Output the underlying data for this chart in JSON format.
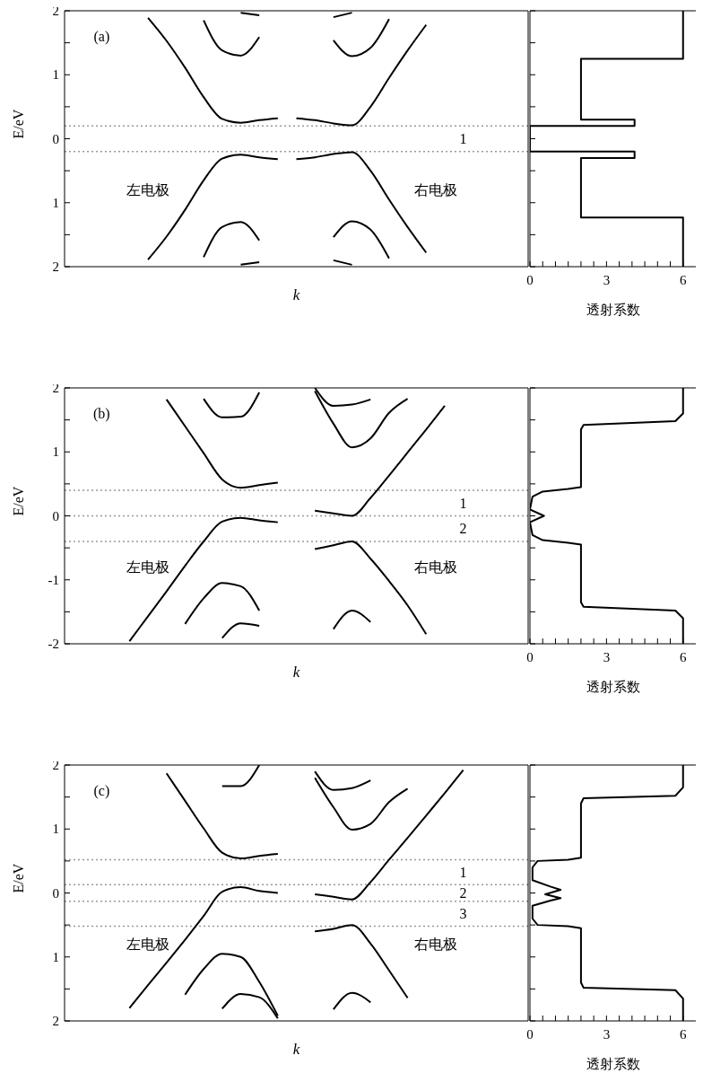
{
  "chart_data": [
    {
      "type": "line",
      "xlabel": "k",
      "ylabel": "E/eV",
      "annotations": [
        "(a)",
        "左电极",
        "右电极",
        "1"
      ],
      "categories": [
        null,
        null,
        null,
        null,
        null,
        null,
        null,
        null,
        null,
        null,
        null,
        null,
        null,
        null,
        null,
        null,
        null,
        null,
        null,
        null,
        null,
        null,
        null,
        null,
        null
      ],
      "series": [
        {
          "color": "#000000",
          "values": [
            null,
            null,
            null,
            null,
            1.89,
            1.53,
            1.11,
            0.65,
            0.31,
            0.25,
            0.29,
            0.32,
            null,
            null,
            null,
            null,
            null,
            null,
            null,
            null,
            null,
            null,
            null,
            null,
            null
          ]
        },
        {
          "color": "#000000",
          "values": [
            null,
            null,
            null,
            null,
            null,
            null,
            null,
            null,
            null,
            null,
            null,
            null,
            0.32,
            0.29,
            0.24,
            0.21,
            0.5,
            0.95,
            1.38,
            1.78,
            null,
            null,
            null,
            null,
            null
          ]
        },
        {
          "color": "#000000",
          "values": [
            null,
            null,
            null,
            null,
            -1.89,
            -1.53,
            -1.11,
            -0.65,
            -0.31,
            -0.25,
            -0.29,
            -0.32,
            null,
            null,
            null,
            null,
            null,
            null,
            null,
            null,
            null,
            null,
            null,
            null,
            null
          ]
        },
        {
          "color": "#000000",
          "values": [
            null,
            null,
            null,
            null,
            null,
            null,
            null,
            null,
            null,
            null,
            null,
            null,
            -0.32,
            -0.29,
            -0.24,
            -0.21,
            -0.5,
            -0.95,
            -1.38,
            -1.78,
            null,
            null,
            null,
            null,
            null
          ]
        },
        {
          "color": "#000000",
          "values": [
            null,
            null,
            null,
            null,
            null,
            null,
            null,
            1.85,
            1.38,
            1.3,
            1.59,
            null,
            null,
            null,
            null,
            null,
            null,
            null,
            null,
            null,
            null,
            null,
            null,
            null,
            null
          ]
        },
        {
          "color": "#000000",
          "values": [
            null,
            null,
            null,
            null,
            null,
            null,
            null,
            null,
            null,
            null,
            null,
            null,
            null,
            null,
            1.54,
            1.29,
            1.42,
            1.87,
            null,
            null,
            null,
            null,
            null,
            null,
            null
          ]
        },
        {
          "color": "#000000",
          "values": [
            null,
            null,
            null,
            null,
            null,
            null,
            null,
            -1.85,
            -1.38,
            -1.3,
            -1.59,
            null,
            null,
            null,
            null,
            null,
            null,
            null,
            null,
            null,
            null,
            null,
            null,
            null,
            null
          ]
        },
        {
          "color": "#000000",
          "values": [
            null,
            null,
            null,
            null,
            null,
            null,
            null,
            null,
            null,
            null,
            null,
            null,
            null,
            null,
            -1.54,
            -1.29,
            -1.42,
            -1.87,
            null,
            null,
            null,
            null,
            null,
            null,
            null
          ]
        },
        {
          "color": "#000000",
          "values": [
            null,
            null,
            null,
            null,
            null,
            null,
            null,
            null,
            null,
            1.97,
            1.93,
            null,
            null,
            null,
            null,
            null,
            null,
            null,
            null,
            null,
            null,
            null,
            null,
            null,
            null
          ]
        },
        {
          "color": "#000000",
          "values": [
            null,
            null,
            null,
            null,
            null,
            null,
            null,
            null,
            null,
            null,
            null,
            null,
            null,
            null,
            1.9,
            1.97,
            null,
            null,
            null,
            null,
            null,
            null,
            null,
            null,
            null
          ]
        },
        {
          "color": "#000000",
          "values": [
            null,
            null,
            null,
            null,
            null,
            null,
            null,
            null,
            null,
            -1.97,
            -1.93,
            null,
            null,
            null,
            null,
            null,
            null,
            null,
            null,
            null,
            null,
            null,
            null,
            null,
            null
          ]
        },
        {
          "color": "#000000",
          "values": [
            null,
            null,
            null,
            null,
            null,
            null,
            null,
            null,
            null,
            null,
            null,
            null,
            null,
            null,
            -1.9,
            -1.97,
            null,
            null,
            null,
            null,
            null,
            null,
            null,
            null,
            null
          ]
        }
      ],
      "ylim": [
        -2,
        2
      ],
      "yticks": [
        2,
        {
          "value": 1.5,
          "label": null
        },
        1,
        {
          "value": 0.5,
          "label": null
        },
        0,
        {
          "value": -0.5,
          "label": null
        },
        {
          "value": -1,
          "label": "1"
        },
        {
          "value": -1.5,
          "label": null
        },
        {
          "value": -2,
          "label": "2"
        }
      ],
      "tick_labels": "y",
      "ref_lines": [
        {
          "axis": "y",
          "value": 0.2,
          "color": "#999999",
          "line_style": "dotted"
        },
        {
          "axis": "y",
          "value": -0.2,
          "color": "#999999",
          "line_style": "dotted"
        }
      ]
    },
    {
      "type": "line",
      "xlabel": "透射系数",
      "color": "#000000",
      "x": [
        6,
        6,
        2,
        2,
        4.1,
        4.1,
        0,
        0,
        4.1,
        4.1,
        2,
        2,
        6,
        6
      ],
      "values": [
        2,
        1.25,
        1.25,
        0.3,
        0.3,
        0.2,
        0.2,
        -0.2,
        -0.2,
        -0.3,
        -0.3,
        -1.23,
        -1.23,
        -2
      ],
      "xlim": [
        0,
        6.5
      ],
      "xticks": [
        0,
        {
          "value": 0.5,
          "label": null
        },
        {
          "value": 1,
          "label": null
        },
        {
          "value": 1.5,
          "label": null
        },
        {
          "value": 2,
          "label": null
        },
        {
          "value": 2.5,
          "label": null
        },
        3,
        {
          "value": 3.5,
          "label": null
        },
        {
          "value": 4,
          "label": null
        },
        {
          "value": 4.5,
          "label": null
        },
        {
          "value": 5,
          "label": null
        },
        {
          "value": 5.5,
          "label": null
        },
        6
      ],
      "ylim": [
        -2,
        2
      ],
      "yticks": [
        {
          "value": 2,
          "label": null
        },
        {
          "value": 1.5,
          "label": null
        },
        {
          "value": 1,
          "label": null
        },
        {
          "value": 0.5,
          "label": null
        },
        {
          "value": 0,
          "label": null
        },
        {
          "value": -0.5,
          "label": null
        },
        {
          "value": -1,
          "label": null
        },
        {
          "value": -1.5,
          "label": null
        },
        {
          "value": -2,
          "label": null
        }
      ],
      "tick_labels": "x"
    },
    {
      "type": "line",
      "xlabel": "k",
      "ylabel": "E/eV",
      "annotations": [
        "(b)",
        "左电极",
        "右电极",
        "1",
        "2"
      ],
      "categories": [
        null,
        null,
        null,
        null,
        null,
        null,
        null,
        null,
        null,
        null,
        null,
        null,
        null,
        null,
        null,
        null,
        null,
        null,
        null,
        null,
        null,
        null,
        null,
        null,
        null
      ],
      "series": [
        {
          "color": "#000000",
          "values": [
            null,
            null,
            null,
            null,
            null,
            1.82,
            1.4,
            0.98,
            0.57,
            0.44,
            0.48,
            0.52,
            null,
            null,
            null,
            null,
            null,
            null,
            null,
            null,
            null,
            null,
            null,
            null,
            null
          ]
        },
        {
          "color": "#000000",
          "values": [
            null,
            null,
            null,
            -1.96,
            -1.57,
            -1.18,
            -0.78,
            -0.4,
            -0.09,
            -0.03,
            -0.07,
            -0.1,
            null,
            null,
            null,
            null,
            null,
            null,
            null,
            null,
            null,
            null,
            null,
            null,
            null
          ]
        },
        {
          "color": "#000000",
          "values": [
            null,
            null,
            null,
            null,
            null,
            null,
            null,
            1.83,
            1.54,
            1.55,
            1.93,
            null,
            null,
            null,
            null,
            null,
            null,
            null,
            null,
            null,
            null,
            null,
            null,
            null,
            null
          ]
        },
        {
          "color": "#000000",
          "values": [
            null,
            null,
            null,
            null,
            null,
            null,
            -1.69,
            -1.29,
            -1.05,
            -1.1,
            -1.48,
            null,
            null,
            null,
            null,
            null,
            null,
            null,
            null,
            null,
            null,
            null,
            null,
            null,
            null
          ]
        },
        {
          "color": "#000000",
          "values": [
            null,
            null,
            null,
            null,
            null,
            null,
            null,
            null,
            -1.91,
            -1.68,
            -1.72,
            null,
            null,
            null,
            null,
            null,
            null,
            null,
            null,
            null,
            null,
            null,
            null,
            null,
            null
          ]
        },
        {
          "color": "#000000",
          "values": [
            null,
            null,
            null,
            null,
            null,
            null,
            null,
            null,
            null,
            null,
            null,
            null,
            null,
            0.08,
            0.04,
            0.0,
            0.28,
            0.63,
            0.99,
            1.35,
            1.72,
            null,
            null,
            null,
            null
          ]
        },
        {
          "color": "#000000",
          "values": [
            null,
            null,
            null,
            null,
            null,
            null,
            null,
            null,
            null,
            null,
            null,
            null,
            null,
            -0.52,
            -0.46,
            -0.4,
            -0.67,
            -1.02,
            -1.4,
            -1.85,
            null,
            null,
            null,
            null,
            null
          ]
        },
        {
          "color": "#000000",
          "values": [
            null,
            null,
            null,
            null,
            null,
            null,
            null,
            null,
            null,
            null,
            null,
            null,
            null,
            1.95,
            1.44,
            1.07,
            1.21,
            1.61,
            1.83,
            null,
            null,
            null,
            null,
            null,
            null
          ]
        },
        {
          "color": "#000000",
          "values": [
            null,
            null,
            null,
            null,
            null,
            null,
            null,
            null,
            null,
            null,
            null,
            null,
            null,
            2.0,
            1.72,
            1.74,
            1.82,
            null,
            null,
            null,
            null,
            null,
            null,
            null,
            null
          ]
        },
        {
          "color": "#000000",
          "values": [
            null,
            null,
            null,
            null,
            null,
            null,
            null,
            null,
            null,
            null,
            null,
            null,
            null,
            null,
            -1.77,
            -1.48,
            -1.66,
            null,
            null,
            null,
            null,
            null,
            null,
            null,
            null
          ]
        }
      ],
      "ylim": [
        -2,
        2
      ],
      "yticks": [
        2,
        {
          "value": 1.5,
          "label": null
        },
        1,
        {
          "value": 0.5,
          "label": null
        },
        0,
        {
          "value": -0.5,
          "label": null
        },
        -1,
        {
          "value": -1.5,
          "label": null
        },
        -2
      ],
      "tick_labels": "y",
      "ref_lines": [
        {
          "axis": "y",
          "value": 0.4,
          "color": "#999999",
          "line_style": "dotted"
        },
        {
          "axis": "y",
          "value": 0,
          "color": "#999999",
          "line_style": "dotted"
        },
        {
          "axis": "y",
          "value": -0.4,
          "color": "#999999",
          "line_style": "dotted"
        }
      ]
    },
    {
      "type": "line",
      "xlabel": "透射系数",
      "color": "#000000",
      "x": [
        6,
        6,
        5.7,
        2.1,
        2,
        2,
        1.5,
        0.5,
        0.1,
        0,
        0.55,
        0,
        0.1,
        0.5,
        1.5,
        2,
        2,
        2.1,
        5.7,
        6,
        6
      ],
      "values": [
        2,
        1.6,
        1.48,
        1.42,
        1.35,
        0.45,
        0.42,
        0.38,
        0.3,
        0.1,
        0,
        -0.1,
        -0.3,
        -0.38,
        -0.42,
        -0.45,
        -1.35,
        -1.42,
        -1.48,
        -1.6,
        -2
      ],
      "xlim": [
        0,
        6.5
      ],
      "xticks": [
        0,
        {
          "value": 0.5,
          "label": null
        },
        {
          "value": 1,
          "label": null
        },
        {
          "value": 1.5,
          "label": null
        },
        {
          "value": 2,
          "label": null
        },
        {
          "value": 2.5,
          "label": null
        },
        3,
        {
          "value": 3.5,
          "label": null
        },
        {
          "value": 4,
          "label": null
        },
        {
          "value": 4.5,
          "label": null
        },
        {
          "value": 5,
          "label": null
        },
        {
          "value": 5.5,
          "label": null
        },
        6
      ],
      "ylim": [
        -2,
        2
      ],
      "yticks": [
        {
          "value": 2,
          "label": null
        },
        {
          "value": 1.5,
          "label": null
        },
        {
          "value": 1,
          "label": null
        },
        {
          "value": 0.5,
          "label": null
        },
        {
          "value": 0,
          "label": null
        },
        {
          "value": -0.5,
          "label": null
        },
        {
          "value": -1,
          "label": null
        },
        {
          "value": -1.5,
          "label": null
        },
        {
          "value": -2,
          "label": null
        }
      ],
      "tick_labels": "x"
    },
    {
      "type": "line",
      "xlabel": "k",
      "ylabel": "E/eV",
      "annotations": [
        "(c)",
        "左电极",
        "右电极",
        "1",
        "2",
        "3"
      ],
      "categories": [
        null,
        null,
        null,
        null,
        null,
        null,
        null,
        null,
        null,
        null,
        null,
        null,
        null,
        null,
        null,
        null,
        null,
        null,
        null,
        null,
        null,
        null,
        null,
        null,
        null
      ],
      "series": [
        {
          "color": "#000000",
          "values": [
            null,
            null,
            null,
            null,
            null,
            1.87,
            1.44,
            1.01,
            0.63,
            0.54,
            0.58,
            0.61,
            null,
            null,
            null,
            null,
            null,
            null,
            null,
            null,
            null,
            null,
            null,
            null,
            null
          ]
        },
        {
          "color": "#000000",
          "values": [
            null,
            null,
            null,
            -1.8,
            -1.44,
            -1.09,
            -0.73,
            -0.36,
            0.02,
            0.09,
            0.03,
            0.0,
            null,
            null,
            null,
            null,
            null,
            null,
            null,
            null,
            null,
            null,
            null,
            null,
            null
          ]
        },
        {
          "color": "#000000",
          "values": [
            null,
            null,
            null,
            null,
            null,
            null,
            null,
            null,
            1.67,
            1.67,
            2.0,
            null,
            null,
            null,
            null,
            null,
            null,
            null,
            null,
            null,
            null,
            null,
            null,
            null,
            null
          ]
        },
        {
          "color": "#000000",
          "values": [
            null,
            null,
            null,
            null,
            null,
            null,
            -1.59,
            -1.19,
            -0.95,
            -1.0,
            -1.39,
            -1.92,
            null,
            null,
            null,
            null,
            null,
            null,
            null,
            null,
            null,
            null,
            null,
            null,
            null
          ]
        },
        {
          "color": "#000000",
          "values": [
            null,
            null,
            null,
            null,
            null,
            null,
            null,
            null,
            -1.81,
            -1.58,
            -1.63,
            -1.96,
            null,
            null,
            null,
            null,
            null,
            null,
            null,
            null,
            null,
            null,
            null,
            null,
            null
          ]
        },
        {
          "color": "#000000",
          "values": [
            null,
            null,
            null,
            null,
            null,
            null,
            null,
            null,
            null,
            null,
            null,
            null,
            null,
            -0.02,
            -0.06,
            -0.1,
            0.17,
            0.52,
            0.86,
            1.21,
            1.56,
            1.92,
            null,
            null,
            null
          ]
        },
        {
          "color": "#000000",
          "values": [
            null,
            null,
            null,
            null,
            null,
            null,
            null,
            null,
            null,
            null,
            null,
            null,
            null,
            -0.6,
            -0.56,
            -0.5,
            -0.79,
            -1.21,
            -1.64,
            null,
            null,
            null,
            null,
            null,
            null
          ]
        },
        {
          "color": "#000000",
          "values": [
            null,
            null,
            null,
            null,
            null,
            null,
            null,
            null,
            null,
            null,
            null,
            null,
            null,
            1.8,
            1.34,
            0.99,
            1.08,
            1.42,
            1.63,
            null,
            null,
            null,
            null,
            null,
            null
          ]
        },
        {
          "color": "#000000",
          "values": [
            null,
            null,
            null,
            null,
            null,
            null,
            null,
            null,
            null,
            null,
            null,
            null,
            null,
            1.9,
            1.61,
            1.64,
            1.76,
            null,
            null,
            null,
            null,
            null,
            null,
            null,
            null
          ]
        },
        {
          "color": "#000000",
          "values": [
            null,
            null,
            null,
            null,
            null,
            null,
            null,
            null,
            null,
            null,
            null,
            null,
            null,
            null,
            -1.82,
            -1.56,
            -1.71,
            null,
            null,
            null,
            null,
            null,
            null,
            null,
            null
          ]
        }
      ],
      "ylim": [
        -2,
        2
      ],
      "yticks": [
        2,
        {
          "value": 1.5,
          "label": null
        },
        1,
        {
          "value": 0.5,
          "label": null
        },
        0,
        {
          "value": -0.5,
          "label": null
        },
        {
          "value": -1,
          "label": "1"
        },
        {
          "value": -1.5,
          "label": null
        },
        {
          "value": -2,
          "label": "2"
        }
      ],
      "tick_labels": "y",
      "ref_lines": [
        {
          "axis": "y",
          "value": 0.52,
          "color": "#999999",
          "line_style": "dotted"
        },
        {
          "axis": "y",
          "value": 0.13,
          "color": "#999999",
          "line_style": "dotted"
        },
        {
          "axis": "y",
          "value": -0.13,
          "color": "#999999",
          "line_style": "dotted"
        },
        {
          "axis": "y",
          "value": -0.52,
          "color": "#999999",
          "line_style": "dotted"
        }
      ]
    },
    {
      "type": "line",
      "xlabel": "透射系数",
      "color": "#000000",
      "x": [
        6,
        6,
        5.7,
        2.1,
        2,
        2,
        1.5,
        0.3,
        0.1,
        0.1,
        0.8,
        1.2,
        0.6,
        1.2,
        0.8,
        0.1,
        0.1,
        0.3,
        1.5,
        2,
        2,
        2.1,
        5.7,
        6,
        6
      ],
      "values": [
        2,
        1.65,
        1.52,
        1.48,
        1.4,
        0.55,
        0.52,
        0.5,
        0.4,
        0.2,
        0.1,
        0.05,
        -0.02,
        -0.08,
        -0.12,
        -0.2,
        -0.4,
        -0.5,
        -0.52,
        -0.55,
        -1.4,
        -1.48,
        -1.52,
        -1.65,
        -2
      ],
      "xlim": [
        0,
        6.5
      ],
      "xticks": [
        0,
        {
          "value": 0.5,
          "label": null
        },
        {
          "value": 1,
          "label": null
        },
        {
          "value": 1.5,
          "label": null
        },
        {
          "value": 2,
          "label": null
        },
        {
          "value": 2.5,
          "label": null
        },
        3,
        {
          "value": 3.5,
          "label": null
        },
        {
          "value": 4,
          "label": null
        },
        {
          "value": 4.5,
          "label": null
        },
        {
          "value": 5,
          "label": null
        },
        {
          "value": 5.5,
          "label": null
        },
        6
      ],
      "ylim": [
        -2,
        2
      ],
      "yticks": [
        {
          "value": 2,
          "label": null
        },
        {
          "value": 1.5,
          "label": null
        },
        {
          "value": 1,
          "label": null
        },
        {
          "value": 0.5,
          "label": null
        },
        {
          "value": 0,
          "label": null
        },
        {
          "value": -0.5,
          "label": null
        },
        {
          "value": -1,
          "label": null
        },
        {
          "value": -1.5,
          "label": null
        },
        {
          "value": -2,
          "label": null
        }
      ],
      "tick_labels": "x"
    }
  ]
}
